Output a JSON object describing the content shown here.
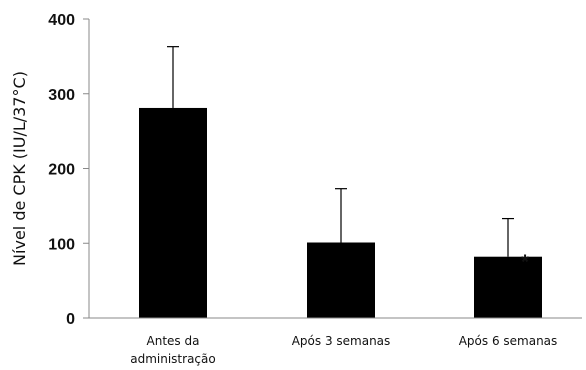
{
  "chart_data": {
    "type": "bar",
    "title": "",
    "xlabel": "",
    "ylabel": "Nível de CPK (IU/L/37°C)",
    "ylim": [
      0,
      400
    ],
    "yticks": [
      0,
      100,
      200,
      300,
      400
    ],
    "grid": false,
    "legend": "none",
    "bar_color": "#000000",
    "categories": [
      [
        "Antes da",
        "administração"
      ],
      [
        "Após 3 semanas"
      ],
      [
        "Após 6 semanas"
      ]
    ],
    "values": [
      281,
      101,
      82
    ],
    "error_upper": [
      363,
      173,
      133
    ],
    "annotations": [
      {
        "category_index": 2,
        "text": "*"
      }
    ]
  }
}
